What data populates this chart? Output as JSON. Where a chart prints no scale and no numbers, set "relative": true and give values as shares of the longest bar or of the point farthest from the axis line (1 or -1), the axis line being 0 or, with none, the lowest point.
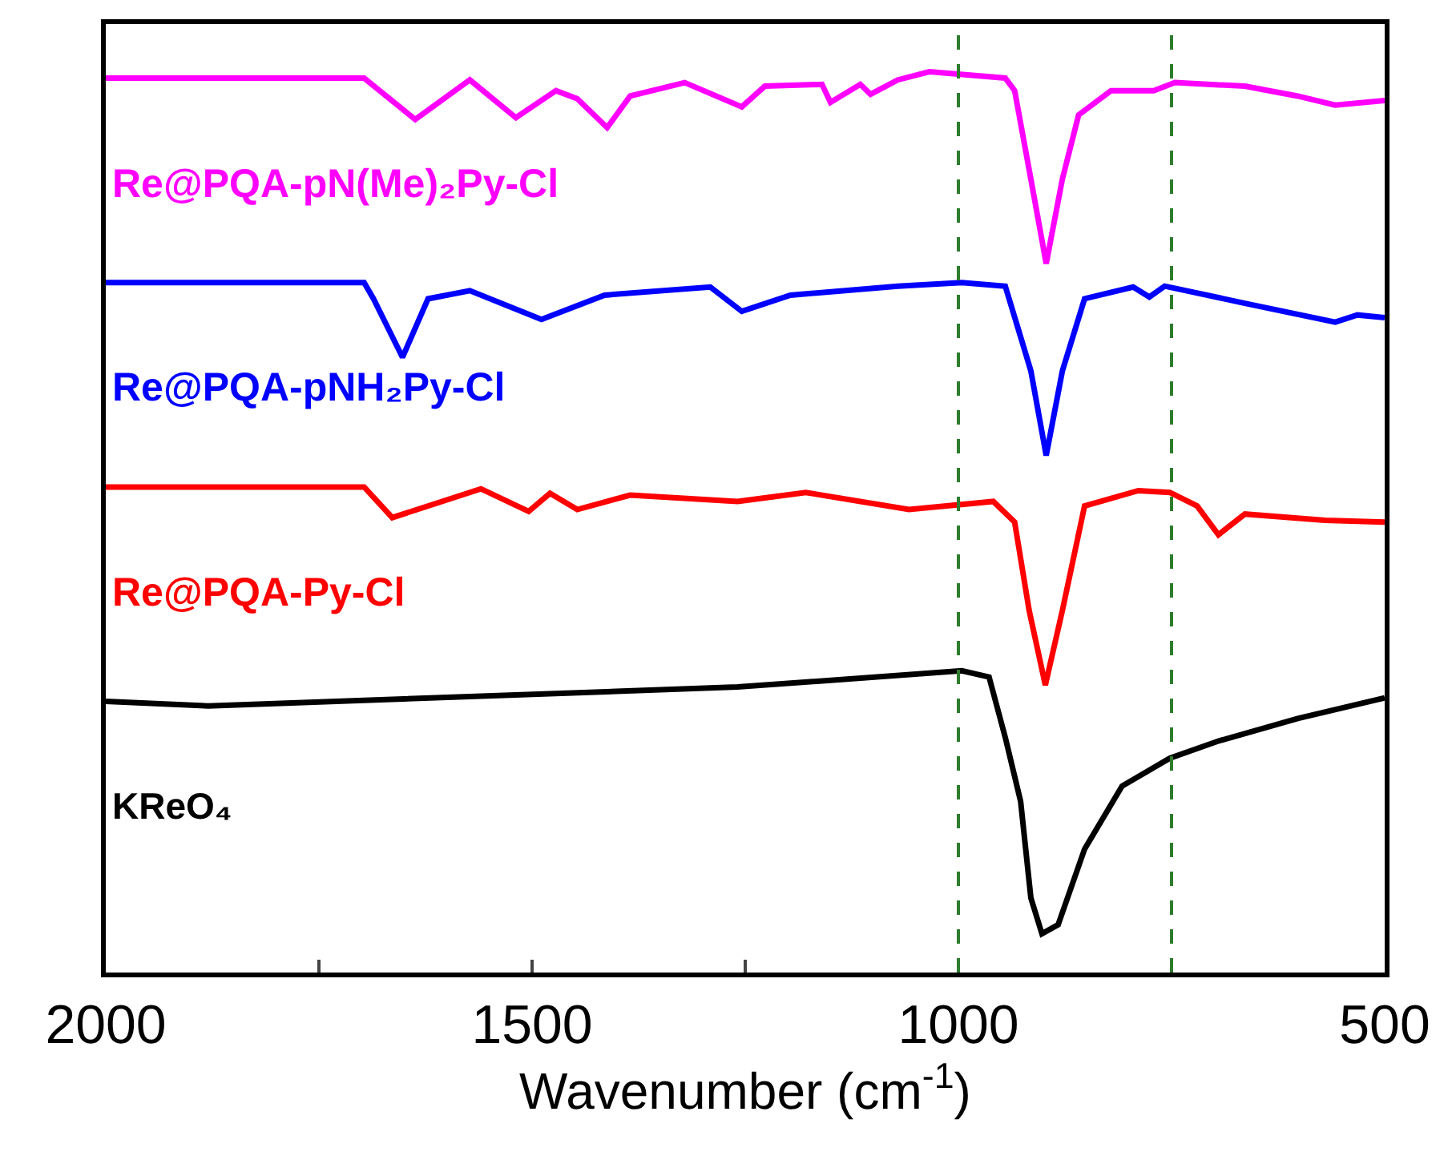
{
  "chart_data": {
    "type": "line",
    "relative": true,
    "xlabel": "Wavenumber (cm$^{-1}$)",
    "xlim": [
      2000,
      500
    ],
    "xticks": [
      2000,
      {
        "value": 1750,
        "label": null
      },
      1500,
      {
        "value": 1250,
        "label": null
      },
      1000,
      {
        "value": 750,
        "label": null
      },
      500
    ],
    "legend": false,
    "marker": "none",
    "line_style": "solid",
    "tick_labels": "x",
    "ref_lines": [
      {
        "axis": "x",
        "value": 1000,
        "color": "#2e7d2e",
        "line_style": "dashed"
      },
      {
        "axis": "x",
        "value": 750,
        "color": "#2e7d2e",
        "line_style": "dashed"
      }
    ],
    "series": [
      {
        "name": "Re@PQA-pN(Me)₂Py-Cl",
        "color": "#ff00ff",
        "x": [
          2000,
          1697,
          1637,
          1573,
          1519,
          1472,
          1447,
          1412,
          1385,
          1321,
          1254,
          1227,
          1160,
          1150,
          1115,
          1103,
          1071,
          1034,
          945,
          934,
          915,
          897,
          878,
          859,
          821,
          771,
          746,
          664,
          602,
          558,
          500
        ],
        "values": [
          0.993,
          0.993,
          0.947,
          0.991,
          0.949,
          0.979,
          0.97,
          0.938,
          0.973,
          0.988,
          0.961,
          0.984,
          0.986,
          0.966,
          0.986,
          0.975,
          0.991,
          1.0,
          0.993,
          0.979,
          0.881,
          0.787,
          0.881,
          0.952,
          0.979,
          0.979,
          0.988,
          0.984,
          0.973,
          0.963,
          0.968
        ]
      },
      {
        "name": "Re@PQA-pNH₂Py-Cl",
        "color": "#0000ff",
        "x": [
          2000,
          1697,
          1686,
          1652,
          1622,
          1573,
          1489,
          1415,
          1291,
          1254,
          1197,
          1071,
          996,
          945,
          915,
          897,
          878,
          852,
          795,
          776,
          758,
          664,
          558,
          532,
          500
        ],
        "values": [
          0.766,
          0.766,
          0.748,
          0.683,
          0.748,
          0.757,
          0.725,
          0.752,
          0.761,
          0.734,
          0.752,
          0.762,
          0.766,
          0.762,
          0.668,
          0.574,
          0.668,
          0.748,
          0.761,
          0.75,
          0.762,
          0.743,
          0.722,
          0.73,
          0.727
        ]
      },
      {
        "name": "Re@PQA-Py-Cl",
        "color": "#ff0000",
        "x": [
          2000,
          1697,
          1664,
          1560,
          1504,
          1479,
          1447,
          1385,
          1259,
          1227,
          1179,
          1058,
          959,
          934,
          917,
          898,
          878,
          852,
          789,
          752,
          720,
          695,
          664,
          570,
          500
        ],
        "values": [
          0.539,
          0.539,
          0.505,
          0.537,
          0.512,
          0.532,
          0.514,
          0.53,
          0.523,
          0.527,
          0.533,
          0.514,
          0.523,
          0.5,
          0.402,
          0.319,
          0.402,
          0.518,
          0.535,
          0.533,
          0.518,
          0.486,
          0.509,
          0.502,
          0.5
        ]
      },
      {
        "name": "KReO₄",
        "color": "#000000",
        "x": [
          2000,
          1880,
          1259,
          996,
          964,
          945,
          927,
          915,
          902,
          883,
          852,
          808,
          752,
          695,
          602,
          500
        ],
        "values": [
          0.301,
          0.296,
          0.317,
          0.335,
          0.328,
          0.261,
          0.19,
          0.083,
          0.043,
          0.053,
          0.137,
          0.207,
          0.238,
          0.257,
          0.282,
          0.305
        ]
      }
    ]
  }
}
